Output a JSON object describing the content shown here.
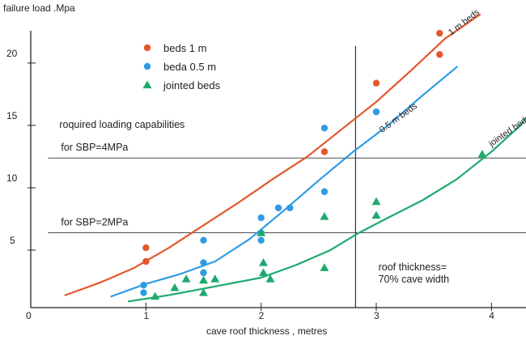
{
  "chart_data": {
    "type": "scatter",
    "title": "",
    "xlabel": "cave roof  thickness , metres",
    "ylabel": "failure  load .Mpa",
    "xlim": [
      0,
      4.3
    ],
    "ylim": [
      0,
      23.5
    ],
    "x_ticks": [
      "0",
      "1",
      "2",
      "3",
      "4"
    ],
    "y_ticks": [
      "5",
      "10",
      "15",
      "20"
    ],
    "grid": false,
    "legend": {
      "placement": "top-left",
      "entries": [
        {
          "label": "beds 1 m",
          "marker": "circle",
          "color": "#e4572e"
        },
        {
          "label": "beda 0.5 m",
          "marker": "circle",
          "color": "#2f9be3"
        },
        {
          "label": "jointed beds",
          "marker": "triangle",
          "color": "#1eaa6e"
        }
      ]
    },
    "series": [
      {
        "name": "beds 1 m",
        "kind": "points",
        "color": "#e4572e",
        "marker": "circle",
        "points": [
          [
            1.0,
            4.8
          ],
          [
            1.0,
            3.7
          ],
          [
            2.55,
            12.5
          ],
          [
            3.0,
            18.0
          ],
          [
            3.55,
            20.3
          ],
          [
            3.55,
            22.0
          ]
        ]
      },
      {
        "name": "beda 0.5 m",
        "kind": "points",
        "color": "#2f9be3",
        "marker": "circle",
        "points": [
          [
            0.98,
            1.8
          ],
          [
            0.98,
            1.2
          ],
          [
            1.5,
            5.4
          ],
          [
            1.5,
            3.6
          ],
          [
            1.5,
            2.8
          ],
          [
            2.0,
            7.2
          ],
          [
            2.0,
            6.0
          ],
          [
            2.0,
            5.4
          ],
          [
            2.15,
            8.0
          ],
          [
            2.25,
            8.0
          ],
          [
            2.55,
            14.4
          ],
          [
            2.55,
            9.3
          ],
          [
            3.0,
            15.7
          ]
        ]
      },
      {
        "name": "jointed beds",
        "kind": "points",
        "color": "#1eaa6e",
        "marker": "triangle",
        "points": [
          [
            1.08,
            0.9
          ],
          [
            1.25,
            1.6
          ],
          [
            1.35,
            2.3
          ],
          [
            1.5,
            1.2
          ],
          [
            1.5,
            2.2
          ],
          [
            1.6,
            2.3
          ],
          [
            2.0,
            6.0
          ],
          [
            2.02,
            3.6
          ],
          [
            2.02,
            2.8
          ],
          [
            2.08,
            2.3
          ],
          [
            2.55,
            7.3
          ],
          [
            2.55,
            3.2
          ],
          [
            3.0,
            8.5
          ],
          [
            3.0,
            7.4
          ],
          [
            3.92,
            12.3
          ]
        ]
      },
      {
        "name": "1 m beds",
        "kind": "curve",
        "color": "#e4572e",
        "points": [
          [
            0.3,
            1.0
          ],
          [
            0.6,
            2.0
          ],
          [
            0.9,
            3.2
          ],
          [
            1.2,
            4.8
          ],
          [
            1.5,
            6.6
          ],
          [
            1.8,
            8.4
          ],
          [
            2.1,
            10.3
          ],
          [
            2.4,
            12.1
          ],
          [
            2.7,
            14.3
          ],
          [
            3.0,
            16.5
          ],
          [
            3.3,
            19.0
          ],
          [
            3.6,
            21.6
          ],
          [
            3.9,
            23.5
          ]
        ]
      },
      {
        "name": "0.5 m beds",
        "kind": "curve",
        "color": "#2f9be3",
        "points": [
          [
            0.7,
            0.9
          ],
          [
            1.0,
            1.9
          ],
          [
            1.3,
            2.7
          ],
          [
            1.6,
            3.7
          ],
          [
            1.9,
            5.5
          ],
          [
            2.2,
            7.8
          ],
          [
            2.5,
            10.2
          ],
          [
            2.8,
            12.5
          ],
          [
            3.1,
            14.6
          ],
          [
            3.4,
            17.0
          ],
          [
            3.7,
            19.3
          ]
        ]
      },
      {
        "name": "jointed beds",
        "kind": "curve",
        "color": "#1eaa6e",
        "points": [
          [
            0.85,
            0.5
          ],
          [
            1.2,
            1.0
          ],
          [
            1.6,
            1.7
          ],
          [
            2.0,
            2.4
          ],
          [
            2.3,
            3.4
          ],
          [
            2.6,
            4.6
          ],
          [
            2.85,
            6.0
          ],
          [
            3.1,
            7.2
          ],
          [
            3.4,
            8.6
          ],
          [
            3.7,
            10.3
          ],
          [
            4.0,
            12.5
          ],
          [
            4.25,
            14.6
          ],
          [
            4.3,
            15.2
          ]
        ]
      }
    ],
    "curve_labels": [
      {
        "text": "1 m beds",
        "x": 3.65,
        "y": 21.8,
        "rotate": -38,
        "series": "1 m beds"
      },
      {
        "text": "0.5 m beds",
        "x": 3.05,
        "y": 14.0,
        "rotate": -36,
        "series": "0.5 m beds"
      },
      {
        "text": "jointed beds",
        "x": 4.0,
        "y": 12.9,
        "rotate": -35,
        "series": "jointed beds"
      }
    ],
    "reference_lines": [
      {
        "orientation": "horizontal",
        "y": 12.0,
        "x_from": 0.15,
        "x_to": 4.3,
        "label": "for  SBP=4MPa",
        "label_x": 0.15,
        "label_y": 12.6
      },
      {
        "orientation": "horizontal",
        "y": 6.0,
        "x_from": 0.15,
        "x_to": 4.3,
        "label": "for  SBP=2MPa",
        "label_x": 0.15,
        "label_y": 6.6
      },
      {
        "orientation": "vertical",
        "x": 2.82,
        "y_from": 0.0,
        "y_to": 21.0
      }
    ],
    "annotations": [
      {
        "text": "roquired  loading capabilities",
        "x": 0.15,
        "y": 14.4
      },
      {
        "text": "roof  thickness=",
        "x": 2.92,
        "y": 3.0
      },
      {
        "text": "70% cave width",
        "x": 2.92,
        "y": 2.0
      }
    ]
  }
}
